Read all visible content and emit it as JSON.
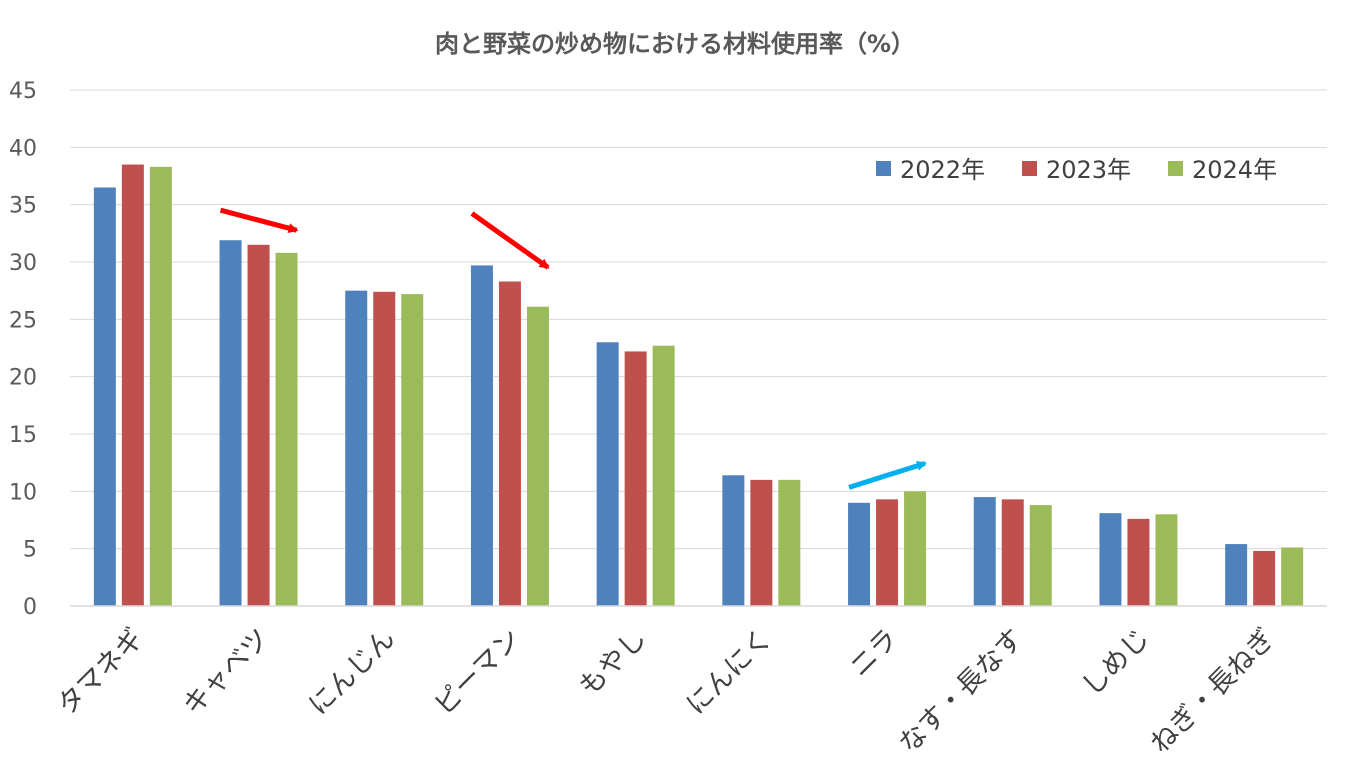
{
  "chart_data": {
    "type": "bar",
    "title": "肉と野菜の炒め物における材料使用率（%）",
    "xlabel": "",
    "ylabel": "",
    "ylim": [
      0,
      45
    ],
    "yticks": [
      "0",
      "5",
      "10",
      "15",
      "20",
      "25",
      "30",
      "35",
      "40",
      "45"
    ],
    "grid": true,
    "legend_position": "top-right",
    "categories": [
      "タマネギ",
      "キャベツ",
      "にんじん",
      "ピーマン",
      "もやし",
      "にんにく",
      "ニラ",
      "なす・長なす",
      "しめじ",
      "ねぎ・長ねぎ"
    ],
    "series": [
      {
        "name": "2022年",
        "color": "#4f81bd",
        "values": [
          36.5,
          31.9,
          27.5,
          29.7,
          23.0,
          11.4,
          9.0,
          9.5,
          8.1,
          5.4
        ]
      },
      {
        "name": "2023年",
        "color": "#c0504d",
        "values": [
          38.5,
          31.5,
          27.4,
          28.3,
          22.2,
          11.0,
          9.3,
          9.3,
          7.6,
          4.8
        ]
      },
      {
        "name": "2024年",
        "color": "#9bbb59",
        "values": [
          38.3,
          30.8,
          27.2,
          26.1,
          22.7,
          11.0,
          10.0,
          8.8,
          8.0,
          5.1
        ]
      }
    ],
    "annotations": [
      {
        "type": "arrow",
        "trend": "down",
        "color": "#ff0000",
        "category": "キャベツ"
      },
      {
        "type": "arrow",
        "trend": "down",
        "color": "#ff0000",
        "category": "ピーマン"
      },
      {
        "type": "arrow",
        "trend": "up",
        "color": "#00b0f0",
        "category": "ニラ"
      }
    ]
  }
}
